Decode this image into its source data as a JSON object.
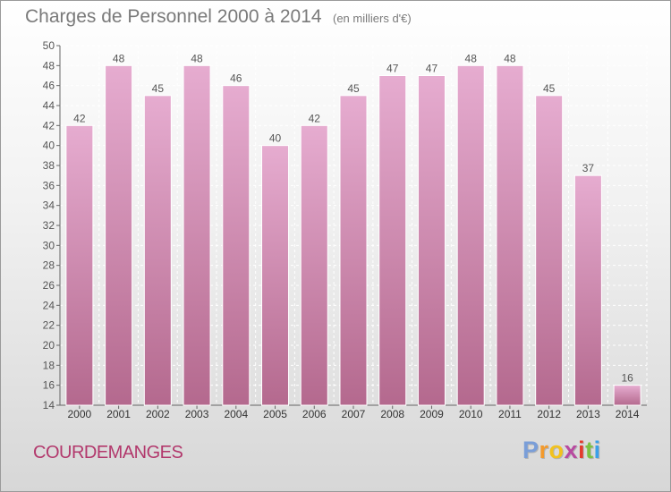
{
  "header": {
    "title": "Charges de Personnel 2000 à 2014",
    "unit": "(en milliers d'€)"
  },
  "footer": {
    "commune": "COURDEMANGES",
    "logo": "Proxiti"
  },
  "colors": {
    "bar_top": "#e6acd0",
    "bar_bottom": "#b4698e",
    "title": "#7a7a7a",
    "commune": "#b2386c",
    "logo_letters": [
      "#7a9ed8",
      "#f39a2c",
      "#f2c21e",
      "#b84aa0",
      "#e33b2d",
      "#7cc242",
      "#3aa0e8"
    ]
  },
  "chart_data": {
    "type": "bar",
    "title": "Charges de Personnel 2000 à 2014",
    "subtitle": "(en milliers d'€)",
    "categories": [
      "2000",
      "2001",
      "2002",
      "2003",
      "2004",
      "2005",
      "2006",
      "2007",
      "2008",
      "2009",
      "2010",
      "2011",
      "2012",
      "2013",
      "2014"
    ],
    "values": [
      42,
      48,
      45,
      48,
      46,
      40,
      42,
      45,
      47,
      47,
      48,
      48,
      45,
      37,
      16
    ],
    "ylim": [
      14,
      50
    ],
    "yticks": [
      14,
      16,
      18,
      20,
      22,
      24,
      26,
      28,
      30,
      32,
      34,
      36,
      38,
      40,
      42,
      44,
      46,
      48,
      50
    ],
    "grid": true,
    "xlabel": "",
    "ylabel": ""
  }
}
